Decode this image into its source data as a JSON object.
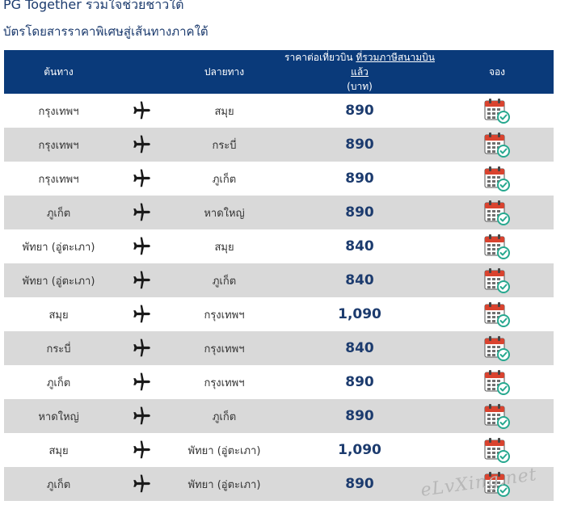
{
  "header": {
    "title": "PG Together รวมใจช่วยชาวใต้",
    "subtitle": "บัตรโดยสารราคาพิเศษสู่เส้นทางภาคใต้"
  },
  "table": {
    "columns": {
      "origin": "ต้นทาง",
      "destination": "ปลายทาง",
      "price_prefix": "ราคาต่อเที่ยวบิน",
      "price_tax_note": "ที่รวมภาษีสนามบินแล้ว",
      "price_unit": "(บาท)",
      "book": "จอง"
    },
    "rows": [
      {
        "origin": "กรุงเทพฯ",
        "destination": "สมุย",
        "price": "890"
      },
      {
        "origin": "กรุงเทพฯ",
        "destination": "กระบี่",
        "price": "890"
      },
      {
        "origin": "กรุงเทพฯ",
        "destination": "ภูเก็ต",
        "price": "890"
      },
      {
        "origin": "ภูเก็ต",
        "destination": "หาดใหญ่",
        "price": "890"
      },
      {
        "origin": "พัทยา (อู่ตะเภา)",
        "destination": "สมุย",
        "price": "840"
      },
      {
        "origin": "พัทยา (อู่ตะเภา)",
        "destination": "ภูเก็ต",
        "price": "840"
      },
      {
        "origin": "สมุย",
        "destination": "กรุงเทพฯ",
        "price": "1,090"
      },
      {
        "origin": "กระบี่",
        "destination": "กรุงเทพฯ",
        "price": "840"
      },
      {
        "origin": "ภูเก็ต",
        "destination": "กรุงเทพฯ",
        "price": "890"
      },
      {
        "origin": "หาดใหญ่",
        "destination": "ภูเก็ต",
        "price": "890"
      },
      {
        "origin": "สมุย",
        "destination": "พัทยา (อู่ตะเภา)",
        "price": "1,090"
      },
      {
        "origin": "ภูเก็ต",
        "destination": "พัทยา (อู่ตะเภา)",
        "price": "890"
      }
    ]
  },
  "icons": {
    "route": "airplane-icon",
    "book": "calendar-check-icon"
  },
  "colors": {
    "header_bg": "#0a3a7a",
    "row_alt_bg": "#d9d9d9",
    "title_text": "#1c3b6e",
    "price_text": "#1c3b6e",
    "calendar_red": "#d9432f",
    "calendar_check": "#27a88f"
  },
  "watermark": "eLvXing.net"
}
